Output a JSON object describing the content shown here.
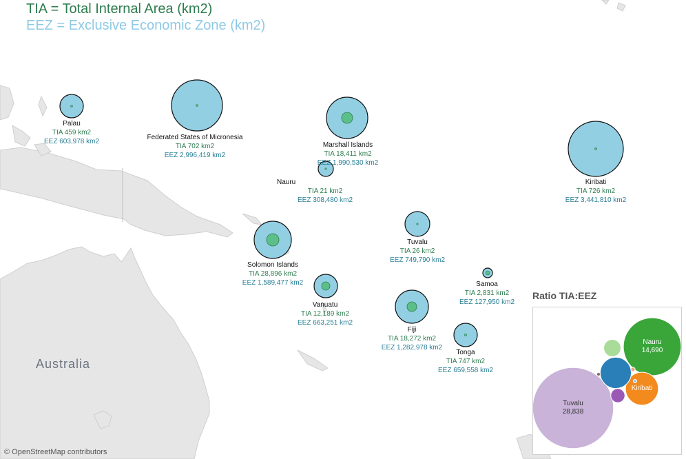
{
  "legend": {
    "tia_line": "TIA = Total Internal Area (km2)",
    "eez_line": "EEZ = Exclusive Economic Zone (km2)"
  },
  "colors": {
    "tia_text": "#2e7d4f",
    "eez_text": "#8ecae6",
    "label_tia": "#2e7d4f",
    "label_eez": "#2a7f96",
    "eez_circle": "#93cfe3",
    "tia_circle": "#5cbf8a",
    "land": "#e6e6e6",
    "land_border": "#cfcfcf"
  },
  "map": {
    "region_label": "Australia",
    "attribution": "© OpenStreetMap contributors"
  },
  "countries": [
    {
      "name": "Palau",
      "tia": "TIA 459 km2",
      "eez": "EEZ 603,978 km2",
      "tia_km2": 459,
      "eez_km2": 603978
    },
    {
      "name": "Federated States of Micronesia",
      "tia": "TIA 702 km2",
      "eez": "EEZ 2,996,419 km2",
      "tia_km2": 702,
      "eez_km2": 2996419
    },
    {
      "name": "Marshall Islands",
      "tia": "TIA 18,411 km2",
      "eez": "EEZ 1,990,530 km2",
      "tia_km2": 18411,
      "eez_km2": 1990530
    },
    {
      "name": "Nauru",
      "tia": "TIA 21 km2",
      "eez": "EEZ 308,480 km2",
      "tia_km2": 21,
      "eez_km2": 308480
    },
    {
      "name": "Kiribati",
      "tia": "TIA 726 km2",
      "eez": "EEZ 3,441,810 km2",
      "tia_km2": 726,
      "eez_km2": 3441810
    },
    {
      "name": "Solomon Islands",
      "tia": "TIA 28,896 km2",
      "eez": "EEZ 1,589,477 km2",
      "tia_km2": 28896,
      "eez_km2": 1589477
    },
    {
      "name": "Tuvalu",
      "tia": "TIA 26 km2",
      "eez": "EEZ 749,790 km2",
      "tia_km2": 26,
      "eez_km2": 749790
    },
    {
      "name": "Samoa",
      "tia": "TIA 2,831 km2",
      "eez": "EEZ 127,950 km2",
      "tia_km2": 2831,
      "eez_km2": 127950
    },
    {
      "name": "Vanuatu",
      "tia": "TIA 12,189 km2",
      "eez": "EEZ 663,251 km2",
      "tia_km2": 12189,
      "eez_km2": 663251
    },
    {
      "name": "Fiji",
      "tia": "TIA 18,272 km2",
      "eez": "EEZ 1,282,978 km2",
      "tia_km2": 18272,
      "eez_km2": 1282978
    },
    {
      "name": "Tonga",
      "tia": "TIA 747 km2",
      "eez": "EEZ 659,558 km2",
      "tia_km2": 747,
      "eez_km2": 659558
    }
  ],
  "ratio_chart": {
    "title": "Ratio TIA:EEZ",
    "bubbles": [
      {
        "label": "Tuvalu",
        "value_label": "28,838",
        "value": 28838,
        "color": "#c9b3d9"
      },
      {
        "label": "Nauru",
        "value_label": "14,690",
        "value": 14690,
        "color": "#3aa63a"
      },
      {
        "label": "Kiribati",
        "value_label": "",
        "value": 4741,
        "color": "#f28a1e"
      },
      {
        "label": "",
        "value_label": "",
        "value": 4268,
        "color": "#2a7fb8"
      },
      {
        "label": "",
        "value_label": "",
        "value": 1300,
        "color": "#a8dc98"
      },
      {
        "label": "",
        "value_label": "",
        "value": 880,
        "color": "#9b59b6"
      },
      {
        "label": "",
        "value_label": "",
        "value": 80,
        "color": "#f4a583"
      },
      {
        "label": "",
        "value_label": "",
        "value": 60,
        "color": "#8c6d62"
      },
      {
        "label": "",
        "value_label": "",
        "value": 50,
        "color": "#9ecae1"
      }
    ]
  }
}
